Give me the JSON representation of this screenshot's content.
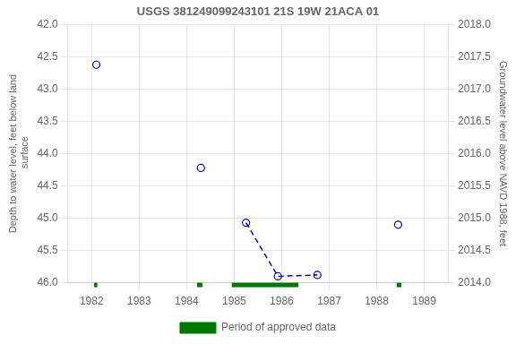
{
  "chart_data": {
    "type": "scatter",
    "title": "USGS 381249099243101 21S 19W 21ACA 01",
    "ylabel": "Depth to water level, feet below land\n surface",
    "y2label": "Groundwater level above NAVD 1988, feet",
    "xlim": [
      1981.5,
      1989.5
    ],
    "xticks": [
      1982,
      1983,
      1984,
      1985,
      1986,
      1987,
      1988,
      1989
    ],
    "ylim": [
      46.0,
      42.0
    ],
    "yticks": [
      {
        "value": 42,
        "label": "42.0"
      },
      42.5,
      {
        "value": 43,
        "label": "43.0"
      },
      43.5,
      {
        "value": 44,
        "label": "44.0"
      },
      44.5,
      {
        "value": 45,
        "label": "45.0"
      },
      45.5,
      {
        "value": 46,
        "label": "46.0"
      }
    ],
    "y2lim": [
      2014.0,
      2018.0
    ],
    "y2ticks": [
      {
        "value": 2014,
        "label": "2014.0"
      },
      2014.5,
      {
        "value": 2015,
        "label": "2015.0"
      },
      2015.5,
      {
        "value": 2016,
        "label": "2016.0"
      },
      2016.5,
      {
        "value": 2017,
        "label": "2017.0"
      },
      2017.5,
      {
        "value": 2018,
        "label": "2018.0"
      }
    ],
    "grid": true,
    "legend": "bottom",
    "series": [
      {
        "type": "scatter",
        "color": "#0000bb",
        "marker": "open_circle",
        "x": [
          1982.1,
          1984.3,
          1985.25,
          1985.92,
          1986.75,
          1988.45
        ],
        "values": [
          42.62,
          44.22,
          45.07,
          45.9,
          45.88,
          45.1
        ]
      },
      {
        "type": "line",
        "color": "#0000bb",
        "line_style": "dashed",
        "x": [
          1985.25,
          1985.92,
          1986.75
        ],
        "values": [
          45.07,
          45.9,
          45.88
        ]
      },
      {
        "type": "span",
        "name": "Period of approved data",
        "color": "#007700",
        "x_start": [
          1982.05,
          1984.22,
          1984.95,
          1988.42
        ],
        "x_end": [
          1982.12,
          1984.33,
          1986.35,
          1988.52
        ]
      }
    ]
  }
}
